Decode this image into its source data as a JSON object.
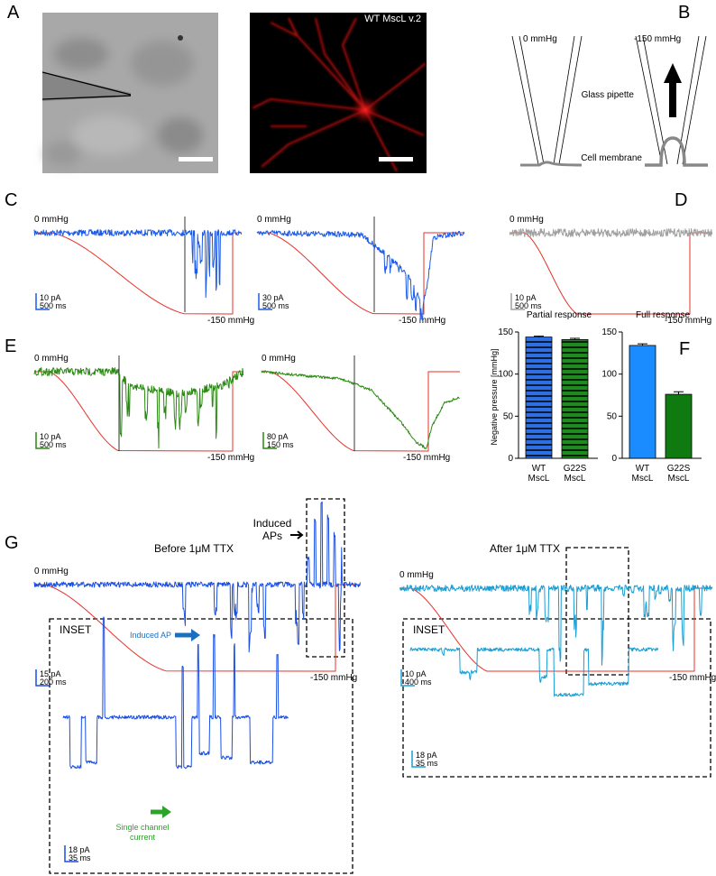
{
  "panel_labels": [
    "A",
    "B",
    "C",
    "D",
    "E",
    "F",
    "G"
  ],
  "panel_a": {
    "fluorescence_label": "WT MscL v.2"
  },
  "panel_b": {
    "pressure_left": "0 mmHg",
    "pressure_right": "-150 mmHg",
    "pipette_label": "Glass pipette",
    "membrane_label": "Cell membrane"
  },
  "traces": {
    "c1": {
      "start": "0 mmHg",
      "end": "-150 mmHg",
      "current_scale": "10 pA",
      "time_scale": "500 ms"
    },
    "c2": {
      "start": "0 mmHg",
      "end": "-150 mmHg",
      "current_scale": "30 pA",
      "time_scale": "500 ms"
    },
    "d": {
      "start": "0 mmHg",
      "end": "-150 mmHg",
      "current_scale": "10 pA",
      "time_scale": "500 ms"
    },
    "e1": {
      "start": "0 mmHg",
      "end": "-150 mmHg",
      "current_scale": "10 pA",
      "time_scale": "500 ms"
    },
    "e2": {
      "start": "0 mmHg",
      "end": "-150 mmHg",
      "current_scale": "80 pA",
      "time_scale": "150 ms"
    },
    "g1": {
      "title": "Before 1μM TTX",
      "start": "0 mmHg",
      "end": "-150 mmHg",
      "current_scale": "15 pA",
      "time_scale": "200 ms"
    },
    "g2": {
      "title": "After 1μM TTX",
      "start": "0 mmHg",
      "end": "-150 mmHg",
      "current_scale": "10 pA",
      "time_scale": "400 ms"
    },
    "insetL": {
      "title": "INSET",
      "ap_label": "Induced AP",
      "channel_label": [
        "Single channel",
        "current"
      ],
      "current_scale": "18 pA",
      "time_scale": "35 ms"
    },
    "insetR": {
      "title": "INSET",
      "current_scale": "18 pA",
      "time_scale": "35 ms"
    }
  },
  "panel_g": {
    "annotation": [
      "Induced",
      "APs"
    ]
  },
  "chart_data": [
    {
      "type": "bar",
      "title": "Partial response",
      "ylabel": "Negative pressure [mmHg]",
      "categories": [
        "WT MscL",
        "G22S MscL"
      ],
      "values": [
        144,
        141
      ],
      "errors": [
        1,
        1.5
      ],
      "colors": [
        "#2f6fe4",
        "#1f8a1f"
      ],
      "hatch": true,
      "ylim": [
        0,
        150
      ],
      "yticks": [
        0,
        50,
        100,
        150
      ]
    },
    {
      "type": "bar",
      "title": "Full response",
      "categories": [
        "WT MscL",
        "G22S MscL"
      ],
      "values": [
        134,
        76
      ],
      "errors": [
        2,
        3
      ],
      "colors": [
        "#1a8cff",
        "#0f7a0f"
      ],
      "hatch": false,
      "ylim": [
        0,
        150
      ],
      "yticks": [
        0,
        50,
        100,
        150
      ]
    }
  ]
}
